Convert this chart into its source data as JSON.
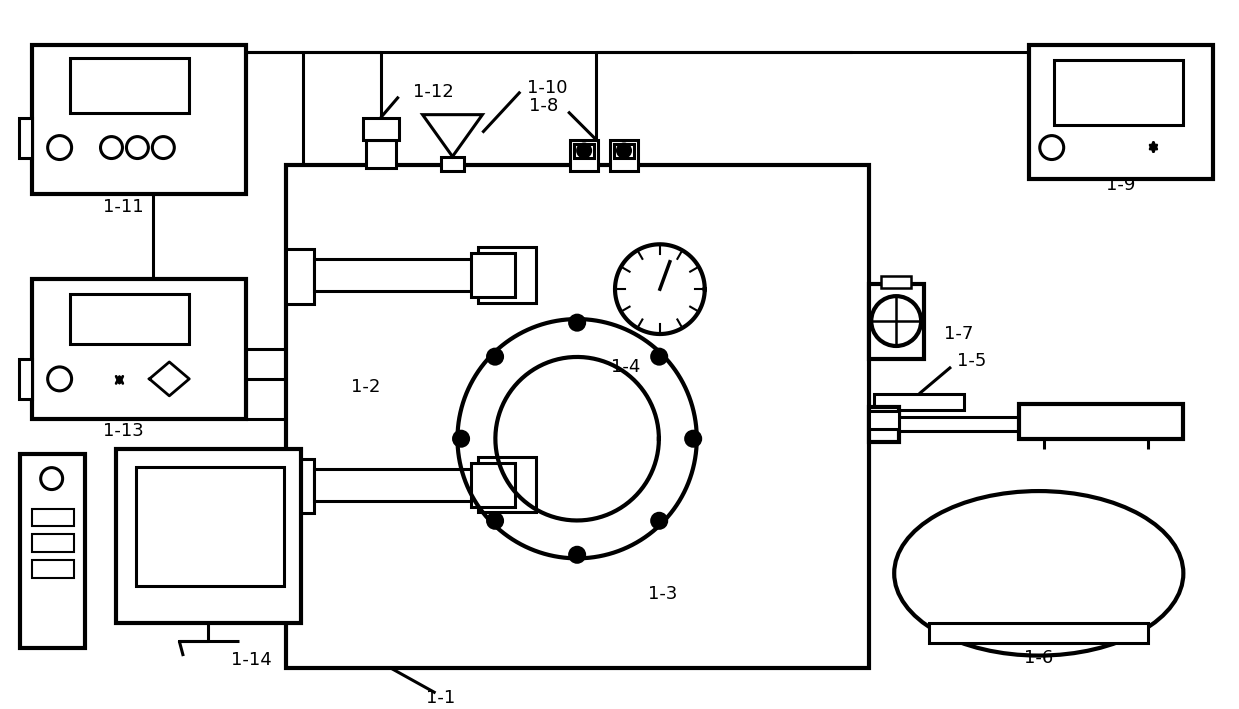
{
  "bg": "#ffffff",
  "lc": "#000000",
  "lw": 2.2,
  "blw": 3.0,
  "fw": 12.39,
  "fh": 7.09,
  "dpi": 100,
  "xmax": 1239,
  "ymax": 709
}
